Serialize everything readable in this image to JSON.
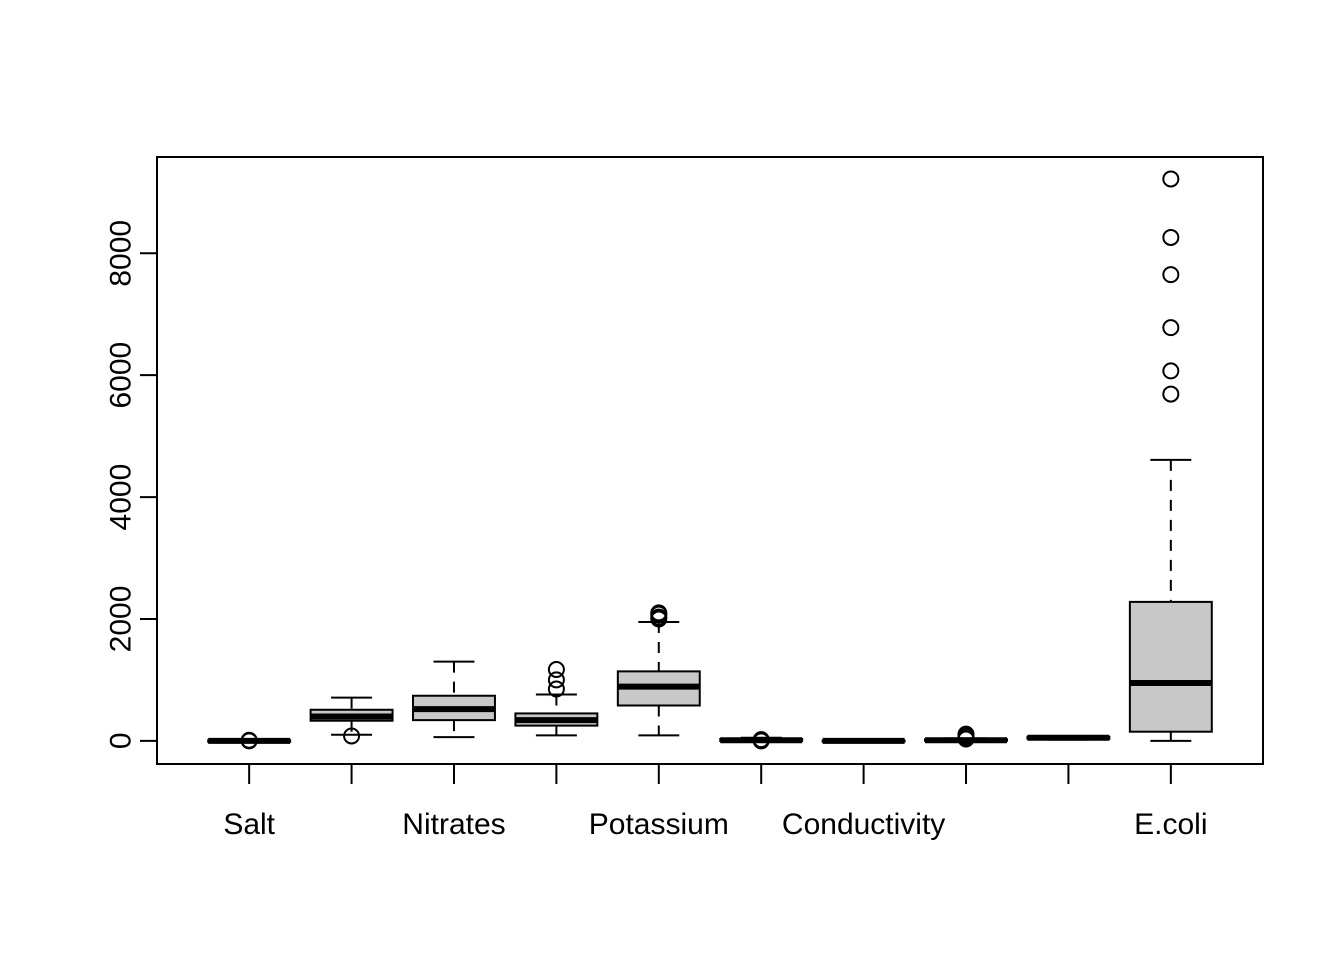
{
  "chart_data": {
    "type": "boxplot",
    "title": "",
    "xlabel": "",
    "ylabel": "",
    "ylim": [
      -380,
      9580
    ],
    "yticks": [
      0,
      2000,
      4000,
      6000,
      8000
    ],
    "tick_labels": [
      "0",
      "2000",
      "4000",
      "6000",
      "8000"
    ],
    "categories": [
      "Salt",
      "",
      "Nitrates",
      "",
      "Potassium",
      "",
      "Conductivity",
      "",
      "",
      "E.coli"
    ],
    "boxes": [
      {
        "whisker_low": -20,
        "q1": -15,
        "median": 0,
        "q3": 10,
        "whisker_high": 20,
        "outliers": [
          0,
          10
        ]
      },
      {
        "whisker_low": 100,
        "q1": 330,
        "median": 400,
        "q3": 510,
        "whisker_high": 710,
        "outliers": [
          80
        ]
      },
      {
        "whisker_low": 60,
        "q1": 340,
        "median": 520,
        "q3": 740,
        "whisker_high": 1300,
        "outliers": []
      },
      {
        "whisker_low": 90,
        "q1": 250,
        "median": 340,
        "q3": 450,
        "whisker_high": 760,
        "outliers": [
          850,
          1000,
          1170
        ]
      },
      {
        "whisker_low": 90,
        "q1": 580,
        "median": 890,
        "q3": 1140,
        "whisker_high": 1950,
        "outliers": [
          2000,
          2030,
          2080,
          2100
        ]
      },
      {
        "whisker_low": -10,
        "q1": 0,
        "median": 10,
        "q3": 30,
        "whisker_high": 50,
        "outliers": [
          0,
          20
        ]
      },
      {
        "whisker_low": -10,
        "q1": -5,
        "median": 0,
        "q3": 5,
        "whisker_high": 10,
        "outliers": []
      },
      {
        "whisker_low": -10,
        "q1": 0,
        "median": 10,
        "q3": 25,
        "whisker_high": 40,
        "outliers": [
          30,
          60,
          90,
          110
        ]
      },
      {
        "whisker_low": 20,
        "q1": 35,
        "median": 50,
        "q3": 65,
        "whisker_high": 80,
        "outliers": []
      },
      {
        "whisker_low": 0,
        "q1": 150,
        "median": 950,
        "q3": 2280,
        "whisker_high": 4610,
        "outliers": [
          5690,
          6070,
          6780,
          7650,
          8260,
          9220
        ]
      }
    ],
    "box_fill": "#c8c8c8",
    "line_color": "#000000",
    "grid": false,
    "legend": "none"
  }
}
